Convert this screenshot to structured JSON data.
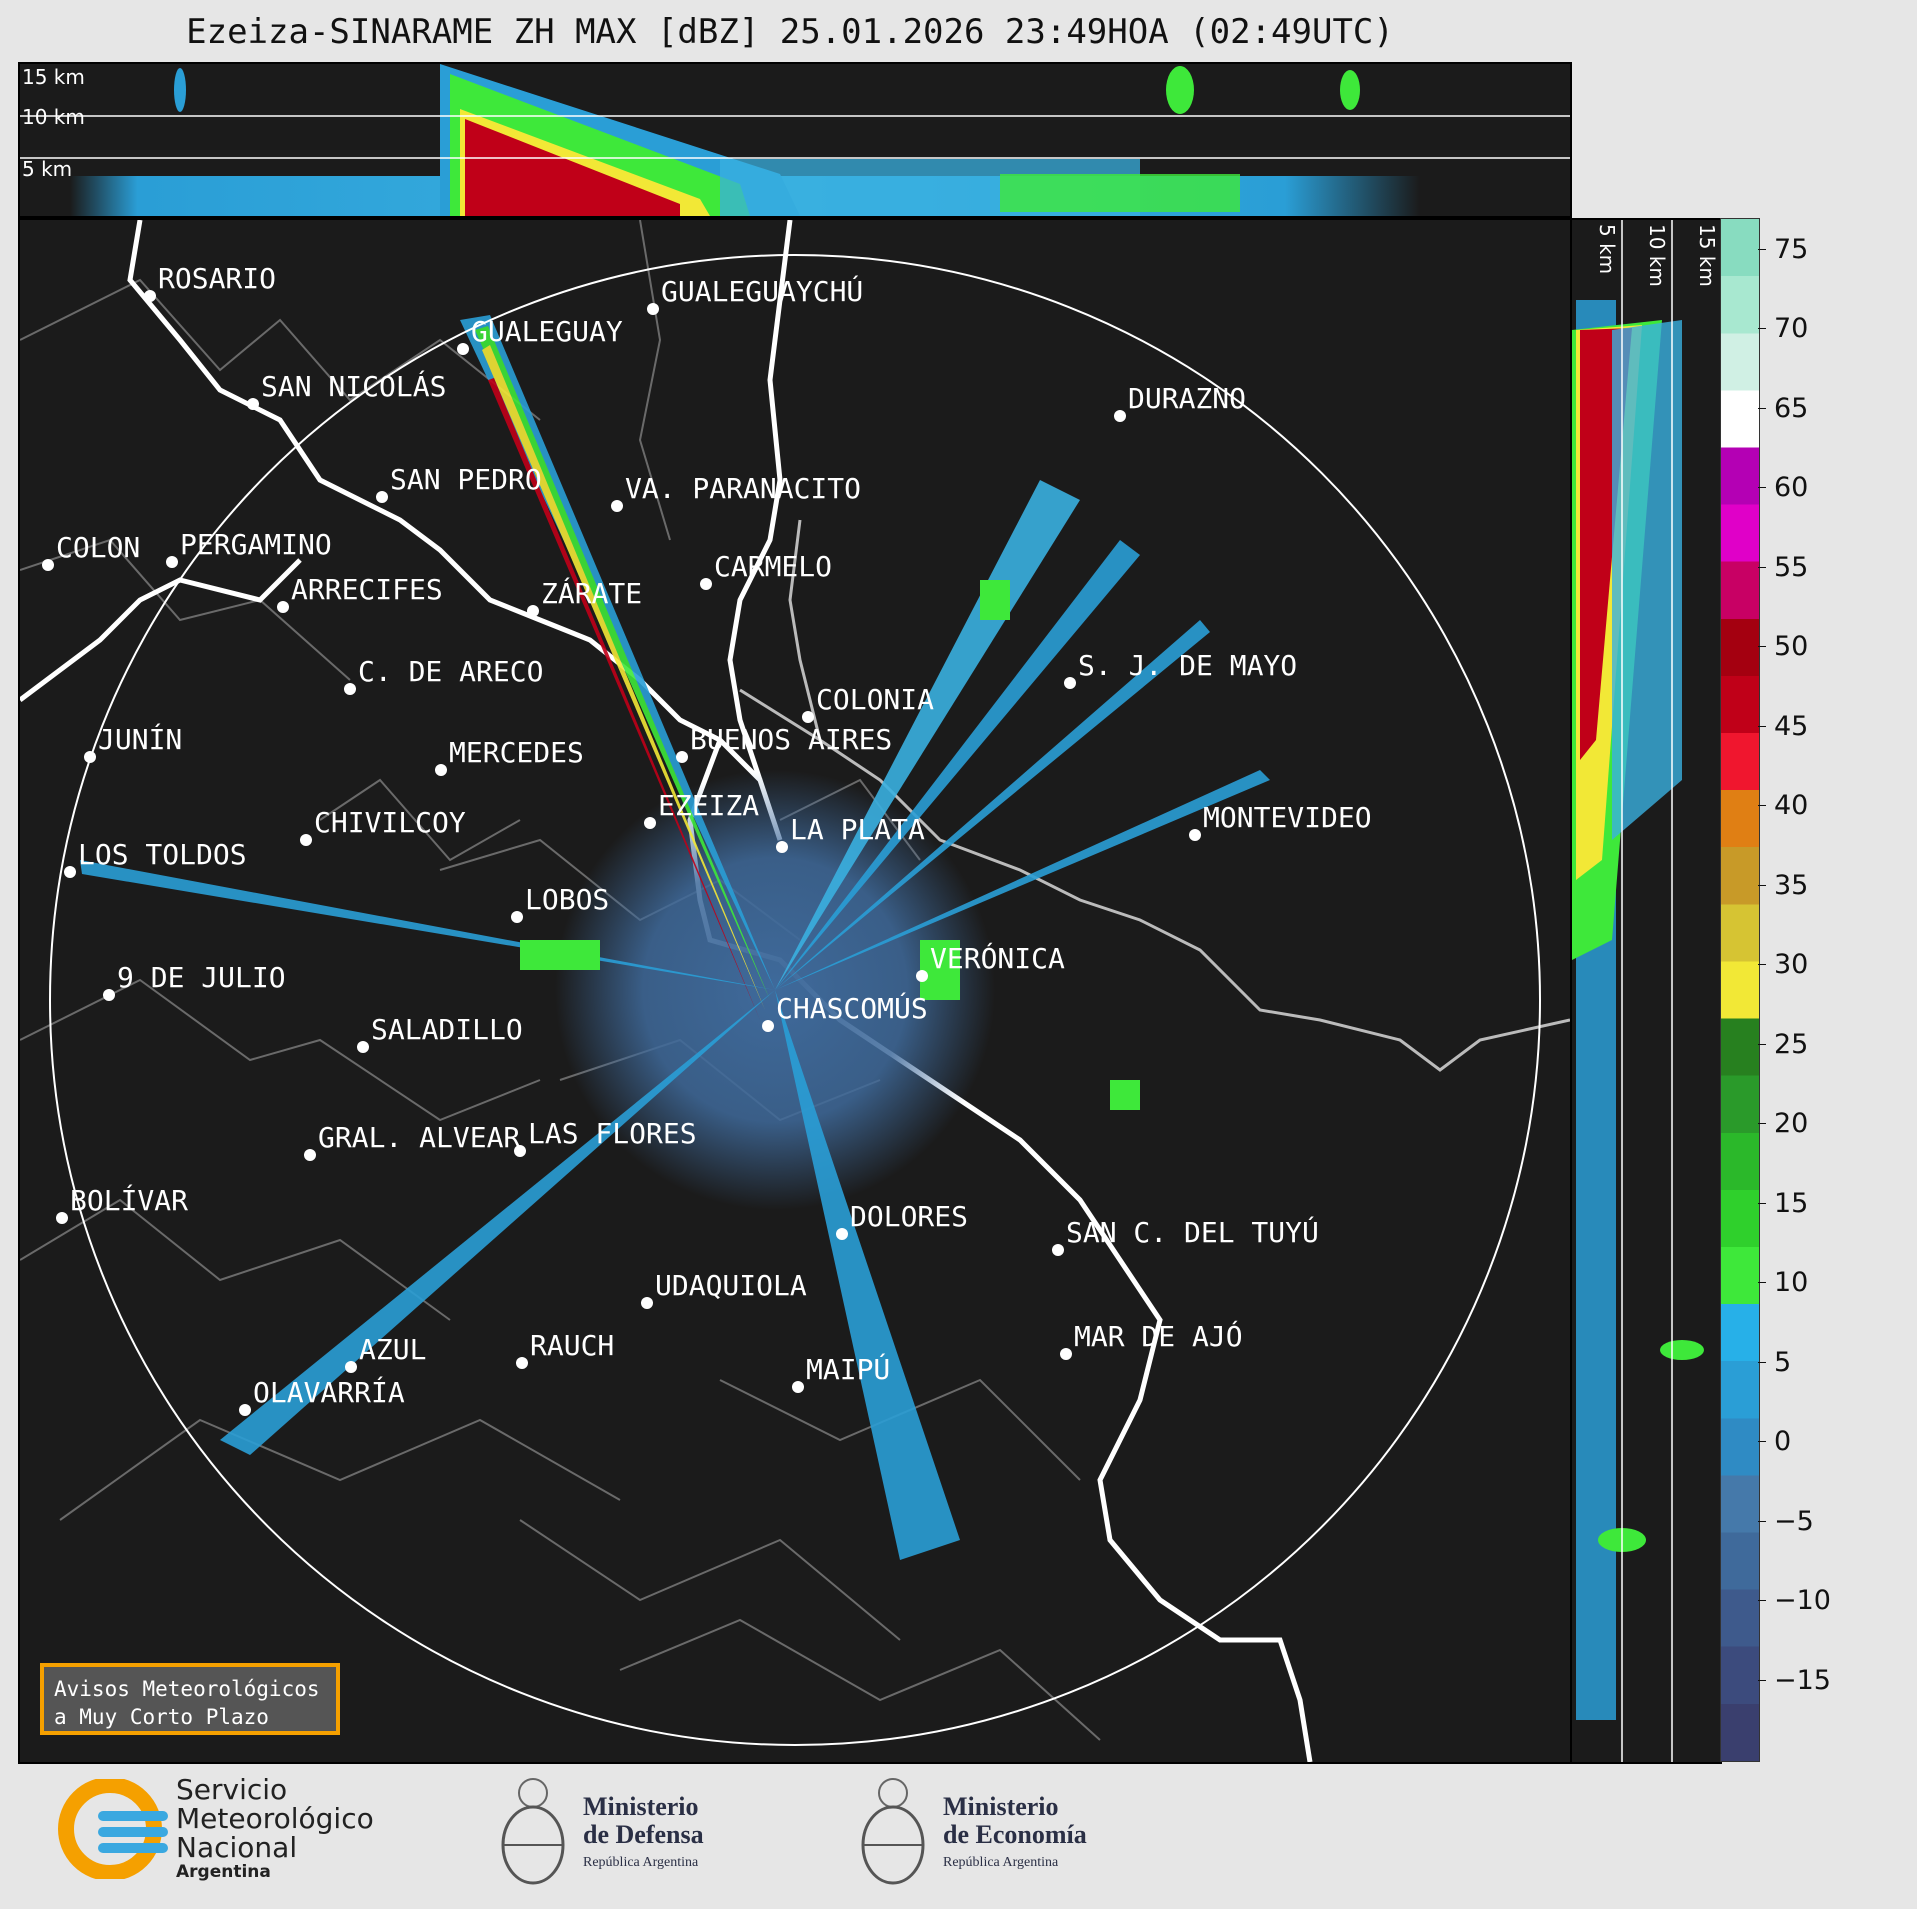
{
  "title": "Ezeiza-SINARAME ZH MAX [dBZ] 25.01.2026 23:49HOA (02:49UTC)",
  "top_panel": {
    "altitude_labels": [
      "15 km",
      "10 km",
      "5 km"
    ]
  },
  "side_panel": {
    "altitude_labels": [
      "5 km",
      "10 km",
      "15 km"
    ]
  },
  "cities": [
    {
      "name": "ROSARIO"
    },
    {
      "name": "GUALEGUAYCHÚ"
    },
    {
      "name": "GUALEGUAY"
    },
    {
      "name": "SAN NICOLÁS"
    },
    {
      "name": "DURAZNO"
    },
    {
      "name": "SAN PEDRO"
    },
    {
      "name": "VA. PARANACITO"
    },
    {
      "name": "COLON"
    },
    {
      "name": "PERGAMINO"
    },
    {
      "name": "CARMELO"
    },
    {
      "name": "ARRECIFES"
    },
    {
      "name": "ZÁRATE"
    },
    {
      "name": "S. J. DE MAYO"
    },
    {
      "name": "C. DE ARECO"
    },
    {
      "name": "COLONIA"
    },
    {
      "name": "JUNÍN"
    },
    {
      "name": "BUENOS AIRES"
    },
    {
      "name": "MERCEDES"
    },
    {
      "name": "MONTEVIDEO"
    },
    {
      "name": "EZEIZA"
    },
    {
      "name": "CHIVILCOY"
    },
    {
      "name": "LA PLATA"
    },
    {
      "name": "LOS TOLDOS"
    },
    {
      "name": "LOBOS"
    },
    {
      "name": "VERÓNICA"
    },
    {
      "name": "9 DE JULIO"
    },
    {
      "name": "CHASCOMÚS"
    },
    {
      "name": "SALADILLO"
    },
    {
      "name": "GRAL. ALVEAR"
    },
    {
      "name": "LAS FLORES"
    },
    {
      "name": "BOLÍVAR"
    },
    {
      "name": "DOLORES"
    },
    {
      "name": "SAN C. DEL TUYÚ"
    },
    {
      "name": "UDAQUIOLA"
    },
    {
      "name": "MAR DE AJÓ"
    },
    {
      "name": "AZUL"
    },
    {
      "name": "RAUCH"
    },
    {
      "name": "OLAVARRÍA"
    },
    {
      "name": "MAIPÚ"
    }
  ],
  "colorbar": {
    "ticks": [
      "75",
      "70",
      "65",
      "60",
      "55",
      "50",
      "45",
      "40",
      "35",
      "30",
      "25",
      "20",
      "15",
      "10",
      "5",
      "0",
      "−5",
      "−10",
      "−15"
    ],
    "range": [
      -20,
      77
    ],
    "colors": [
      "#3a3f6e",
      "#3c4b7d",
      "#3e5a8c",
      "#3f6a9b",
      "#4579aa",
      "#2f8bc4",
      "#2a9ed6",
      "#27b0e8",
      "#3ee83a",
      "#2fd02c",
      "#2bb82a",
      "#2a9a2a",
      "#27801f",
      "#f2e836",
      "#d6c433",
      "#c89a28",
      "#e07f14",
      "#f0162e",
      "#c00018",
      "#a40010",
      "#c80064",
      "#e000c8",
      "#b400b4",
      "#ffffff",
      "#d0f0e4",
      "#a8e8d0",
      "#88dcc0"
    ]
  },
  "warning_box": {
    "line1": "Avisos Meteorológicos",
    "line2": "a Muy Corto Plazo"
  },
  "footer": {
    "smn": {
      "line1": "Servicio",
      "line2": "Meteorológico",
      "line3": "Nacional",
      "line4": "Argentina"
    },
    "defensa": {
      "line1": "Ministerio",
      "line2": "de Defensa",
      "line3": "República Argentina"
    },
    "economia": {
      "line1": "Ministerio",
      "line2": "de Economía",
      "line3": "República Argentina"
    }
  }
}
